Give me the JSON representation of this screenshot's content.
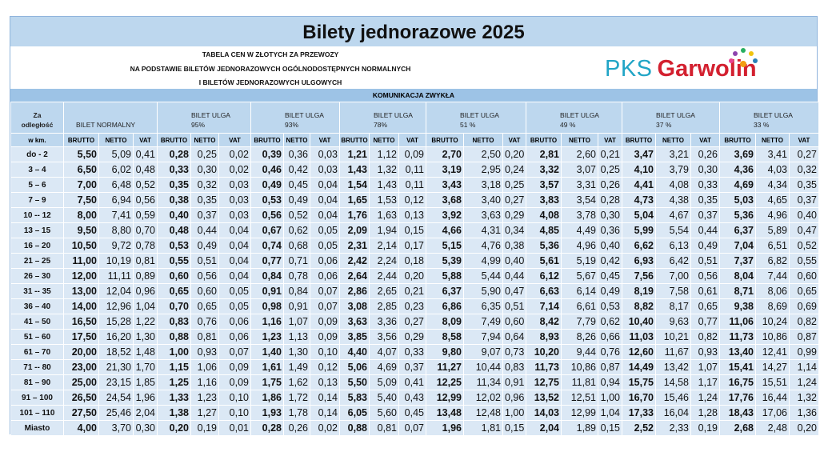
{
  "title": "Bilety jednorazowe 2025",
  "subtitle": [
    "TABELA CEN W ZŁOTYCH ZA PRZEWOZY",
    "NA PODSTAWIE BILETÓW JEDNORAZOWYCH OGÓLNODOSTĘPNYCH NORMALNYCH",
    "I BILETÓW JEDNORAZOWYCH ULGOWYCH"
  ],
  "logo": {
    "brand": "PKS",
    "name": "Garwolin"
  },
  "section": "KOMUNIKACJA ZWYKŁA",
  "table": {
    "distance_header": [
      "Za",
      "odległość",
      "w km."
    ],
    "groups": [
      {
        "name": "BILET NORMALNY"
      },
      {
        "name": "BILET ULGA",
        "discount": "95%"
      },
      {
        "name": "BILET ULGA",
        "discount": "93%"
      },
      {
        "name": "BILET ULGA",
        "discount": "78%"
      },
      {
        "name": "BILET ULGA",
        "discount": "51 %"
      },
      {
        "name": "BILET ULGA",
        "discount": "49 %"
      },
      {
        "name": "BILET ULGA",
        "discount": "37 %"
      },
      {
        "name": "BILET ULGA",
        "discount": "33 %"
      }
    ],
    "column_headers": [
      "BRUTTO",
      "NETTO",
      "VAT"
    ],
    "rows": [
      {
        "distance": "do - 2",
        "prices": [
          "5,50",
          "5,09",
          "0,41",
          "0,28",
          "0,25",
          "0,02",
          "0,39",
          "0,36",
          "0,03",
          "1,21",
          "1,12",
          "0,09",
          "2,70",
          "2,50",
          "0,20",
          "2,81",
          "2,60",
          "0,21",
          "3,47",
          "3,21",
          "0,26",
          "3,69",
          "3,41",
          "0,27"
        ]
      },
      {
        "distance": "3 – 4",
        "prices": [
          "6,50",
          "6,02",
          "0,48",
          "0,33",
          "0,30",
          "0,02",
          "0,46",
          "0,42",
          "0,03",
          "1,43",
          "1,32",
          "0,11",
          "3,19",
          "2,95",
          "0,24",
          "3,32",
          "3,07",
          "0,25",
          "4,10",
          "3,79",
          "0,30",
          "4,36",
          "4,03",
          "0,32"
        ]
      },
      {
        "distance": "5 – 6",
        "prices": [
          "7,00",
          "6,48",
          "0,52",
          "0,35",
          "0,32",
          "0,03",
          "0,49",
          "0,45",
          "0,04",
          "1,54",
          "1,43",
          "0,11",
          "3,43",
          "3,18",
          "0,25",
          "3,57",
          "3,31",
          "0,26",
          "4,41",
          "4,08",
          "0,33",
          "4,69",
          "4,34",
          "0,35"
        ]
      },
      {
        "distance": "7 – 9",
        "prices": [
          "7,50",
          "6,94",
          "0,56",
          "0,38",
          "0,35",
          "0,03",
          "0,53",
          "0,49",
          "0,04",
          "1,65",
          "1,53",
          "0,12",
          "3,68",
          "3,40",
          "0,27",
          "3,83",
          "3,54",
          "0,28",
          "4,73",
          "4,38",
          "0,35",
          "5,03",
          "4,65",
          "0,37"
        ]
      },
      {
        "distance": "10 -- 12",
        "prices": [
          "8,00",
          "7,41",
          "0,59",
          "0,40",
          "0,37",
          "0,03",
          "0,56",
          "0,52",
          "0,04",
          "1,76",
          "1,63",
          "0,13",
          "3,92",
          "3,63",
          "0,29",
          "4,08",
          "3,78",
          "0,30",
          "5,04",
          "4,67",
          "0,37",
          "5,36",
          "4,96",
          "0,40"
        ]
      },
      {
        "distance": "13 – 15",
        "prices": [
          "9,50",
          "8,80",
          "0,70",
          "0,48",
          "0,44",
          "0,04",
          "0,67",
          "0,62",
          "0,05",
          "2,09",
          "1,94",
          "0,15",
          "4,66",
          "4,31",
          "0,34",
          "4,85",
          "4,49",
          "0,36",
          "5,99",
          "5,54",
          "0,44",
          "6,37",
          "5,89",
          "0,47"
        ]
      },
      {
        "distance": "16 – 20",
        "prices": [
          "10,50",
          "9,72",
          "0,78",
          "0,53",
          "0,49",
          "0,04",
          "0,74",
          "0,68",
          "0,05",
          "2,31",
          "2,14",
          "0,17",
          "5,15",
          "4,76",
          "0,38",
          "5,36",
          "4,96",
          "0,40",
          "6,62",
          "6,13",
          "0,49",
          "7,04",
          "6,51",
          "0,52"
        ]
      },
      {
        "distance": "21 – 25",
        "prices": [
          "11,00",
          "10,19",
          "0,81",
          "0,55",
          "0,51",
          "0,04",
          "0,77",
          "0,71",
          "0,06",
          "2,42",
          "2,24",
          "0,18",
          "5,39",
          "4,99",
          "0,40",
          "5,61",
          "5,19",
          "0,42",
          "6,93",
          "6,42",
          "0,51",
          "7,37",
          "6,82",
          "0,55"
        ]
      },
      {
        "distance": "26 – 30",
        "prices": [
          "12,00",
          "11,11",
          "0,89",
          "0,60",
          "0,56",
          "0,04",
          "0,84",
          "0,78",
          "0,06",
          "2,64",
          "2,44",
          "0,20",
          "5,88",
          "5,44",
          "0,44",
          "6,12",
          "5,67",
          "0,45",
          "7,56",
          "7,00",
          "0,56",
          "8,04",
          "7,44",
          "0,60"
        ]
      },
      {
        "distance": "31 -- 35",
        "prices": [
          "13,00",
          "12,04",
          "0,96",
          "0,65",
          "0,60",
          "0,05",
          "0,91",
          "0,84",
          "0,07",
          "2,86",
          "2,65",
          "0,21",
          "6,37",
          "5,90",
          "0,47",
          "6,63",
          "6,14",
          "0,49",
          "8,19",
          "7,58",
          "0,61",
          "8,71",
          "8,06",
          "0,65"
        ]
      },
      {
        "distance": "36 – 40",
        "prices": [
          "14,00",
          "12,96",
          "1,04",
          "0,70",
          "0,65",
          "0,05",
          "0,98",
          "0,91",
          "0,07",
          "3,08",
          "2,85",
          "0,23",
          "6,86",
          "6,35",
          "0,51",
          "7,14",
          "6,61",
          "0,53",
          "8,82",
          "8,17",
          "0,65",
          "9,38",
          "8,69",
          "0,69"
        ]
      },
      {
        "distance": "41 – 50",
        "prices": [
          "16,50",
          "15,28",
          "1,22",
          "0,83",
          "0,76",
          "0,06",
          "1,16",
          "1,07",
          "0,09",
          "3,63",
          "3,36",
          "0,27",
          "8,09",
          "7,49",
          "0,60",
          "8,42",
          "7,79",
          "0,62",
          "10,40",
          "9,63",
          "0,77",
          "11,06",
          "10,24",
          "0,82"
        ]
      },
      {
        "distance": "51 – 60",
        "prices": [
          "17,50",
          "16,20",
          "1,30",
          "0,88",
          "0,81",
          "0,06",
          "1,23",
          "1,13",
          "0,09",
          "3,85",
          "3,56",
          "0,29",
          "8,58",
          "7,94",
          "0,64",
          "8,93",
          "8,26",
          "0,66",
          "11,03",
          "10,21",
          "0,82",
          "11,73",
          "10,86",
          "0,87"
        ]
      },
      {
        "distance": "61 – 70",
        "prices": [
          "20,00",
          "18,52",
          "1,48",
          "1,00",
          "0,93",
          "0,07",
          "1,40",
          "1,30",
          "0,10",
          "4,40",
          "4,07",
          "0,33",
          "9,80",
          "9,07",
          "0,73",
          "10,20",
          "9,44",
          "0,76",
          "12,60",
          "11,67",
          "0,93",
          "13,40",
          "12,41",
          "0,99"
        ]
      },
      {
        "distance": "71 -- 80",
        "prices": [
          "23,00",
          "21,30",
          "1,70",
          "1,15",
          "1,06",
          "0,09",
          "1,61",
          "1,49",
          "0,12",
          "5,06",
          "4,69",
          "0,37",
          "11,27",
          "10,44",
          "0,83",
          "11,73",
          "10,86",
          "0,87",
          "14,49",
          "13,42",
          "1,07",
          "15,41",
          "14,27",
          "1,14"
        ]
      },
      {
        "distance": "81 – 90",
        "prices": [
          "25,00",
          "23,15",
          "1,85",
          "1,25",
          "1,16",
          "0,09",
          "1,75",
          "1,62",
          "0,13",
          "5,50",
          "5,09",
          "0,41",
          "12,25",
          "11,34",
          "0,91",
          "12,75",
          "11,81",
          "0,94",
          "15,75",
          "14,58",
          "1,17",
          "16,75",
          "15,51",
          "1,24"
        ]
      },
      {
        "distance": "91 – 100",
        "prices": [
          "26,50",
          "24,54",
          "1,96",
          "1,33",
          "1,23",
          "0,10",
          "1,86",
          "1,72",
          "0,14",
          "5,83",
          "5,40",
          "0,43",
          "12,99",
          "12,02",
          "0,96",
          "13,52",
          "12,51",
          "1,00",
          "16,70",
          "15,46",
          "1,24",
          "17,76",
          "16,44",
          "1,32"
        ]
      },
      {
        "distance": "101 – 110",
        "prices": [
          "27,50",
          "25,46",
          "2,04",
          "1,38",
          "1,27",
          "0,10",
          "1,93",
          "1,78",
          "0,14",
          "6,05",
          "5,60",
          "0,45",
          "13,48",
          "12,48",
          "1,00",
          "14,03",
          "12,99",
          "1,04",
          "17,33",
          "16,04",
          "1,28",
          "18,43",
          "17,06",
          "1,36"
        ]
      },
      {
        "distance": "Miasto",
        "prices": [
          "4,00",
          "3,70",
          "0,30",
          "0,20",
          "0,19",
          "0,01",
          "0,28",
          "0,26",
          "0,02",
          "0,88",
          "0,81",
          "0,07",
          "1,96",
          "1,81",
          "0,15",
          "2,04",
          "1,89",
          "0,15",
          "2,52",
          "2,33",
          "0,19",
          "2,68",
          "2,48",
          "0,20"
        ]
      }
    ]
  }
}
